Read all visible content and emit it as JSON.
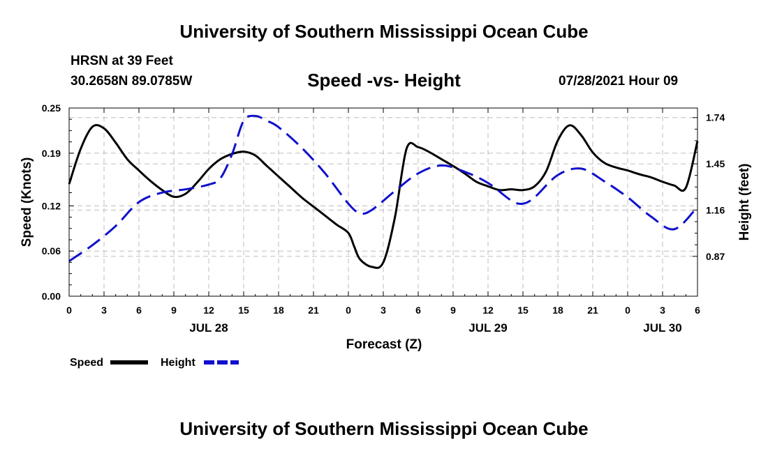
{
  "header": {
    "title": "University of Southern Mississippi Ocean Cube",
    "station": "HRSN at 39 Feet",
    "coords": "30.2658N  89.0785W",
    "subtitle": "Speed -vs- Height",
    "datetime": "07/28/2021 Hour 09"
  },
  "footer": {
    "title": "University of Southern Mississippi Ocean Cube"
  },
  "chart_data": {
    "type": "line",
    "title": "Speed -vs- Height",
    "xlabel": "Forecast (Z)",
    "ylabel": "Speed (Knots)",
    "y2label": "Height (feet)",
    "xlim": [
      0,
      54
    ],
    "ylim": [
      0,
      0.25
    ],
    "y2lim": [
      0.62,
      1.8
    ],
    "x_ticks": [
      0,
      3,
      6,
      9,
      12,
      15,
      18,
      21,
      24,
      27,
      30,
      33,
      36,
      39,
      42,
      45,
      48,
      51,
      54
    ],
    "x_tick_labels": [
      "0",
      "3",
      "6",
      "9",
      "12",
      "15",
      "18",
      "21",
      "0",
      "3",
      "6",
      "9",
      "12",
      "15",
      "18",
      "21",
      "0",
      "3",
      "6"
    ],
    "date_labels": [
      {
        "x": 12,
        "text": "JUL 28"
      },
      {
        "x": 36,
        "text": "JUL 29"
      },
      {
        "x": 51,
        "text": "JUL 30"
      }
    ],
    "y_ticks": [
      0.0,
      0.06,
      0.12,
      0.19,
      0.25
    ],
    "y_tick_labels": [
      "0.00",
      "0.06",
      "0.12",
      "0.19",
      "0.25"
    ],
    "y2_ticks": [
      0.87,
      1.16,
      1.45,
      1.74
    ],
    "y2_tick_labels": [
      "0.87",
      "1.16",
      "1.45",
      "1.74"
    ],
    "grid": true,
    "legend": [
      {
        "label": "Speed",
        "color": "#000000",
        "dash": "solid"
      },
      {
        "label": "Height",
        "color": "#1010cc",
        "dash": "dashed"
      }
    ],
    "series": [
      {
        "name": "Speed",
        "axis": "left",
        "color": "#000000",
        "x": [
          0,
          1,
          2,
          3,
          4,
          5,
          6,
          7,
          8,
          9,
          10,
          11,
          12,
          13,
          14,
          15,
          16,
          17,
          18,
          19,
          20,
          21,
          22,
          23,
          24,
          24.5,
          25,
          26,
          27,
          28,
          29,
          30,
          31,
          32,
          33,
          34,
          35,
          36,
          37,
          38,
          39,
          40,
          41,
          42,
          43,
          44,
          45,
          46,
          47,
          48,
          49,
          50,
          51,
          52,
          53,
          54
        ],
        "values": [
          0.149,
          0.196,
          0.225,
          0.223,
          0.204,
          0.182,
          0.167,
          0.153,
          0.141,
          0.132,
          0.136,
          0.151,
          0.169,
          0.182,
          0.189,
          0.192,
          0.187,
          0.173,
          0.159,
          0.145,
          0.131,
          0.119,
          0.107,
          0.095,
          0.084,
          0.066,
          0.049,
          0.039,
          0.045,
          0.105,
          0.196,
          0.198,
          0.191,
          0.182,
          0.173,
          0.163,
          0.152,
          0.146,
          0.141,
          0.142,
          0.141,
          0.146,
          0.166,
          0.207,
          0.227,
          0.214,
          0.191,
          0.177,
          0.171,
          0.167,
          0.162,
          0.158,
          0.152,
          0.147,
          0.144,
          0.206
        ],
        "points_note": "Estimated by reading the chart"
      },
      {
        "name": "Height",
        "axis": "right",
        "color": "#1010cc",
        "x": [
          0,
          2,
          4,
          6,
          8,
          10,
          12,
          13,
          14,
          15,
          16,
          17,
          18,
          20,
          22,
          24,
          25,
          26,
          28,
          30,
          32,
          34,
          36,
          38,
          39,
          40,
          42,
          44,
          46,
          48,
          50,
          52,
          54
        ],
        "values": [
          0.84,
          0.94,
          1.06,
          1.21,
          1.27,
          1.29,
          1.32,
          1.36,
          1.51,
          1.72,
          1.75,
          1.72,
          1.68,
          1.55,
          1.39,
          1.2,
          1.14,
          1.16,
          1.28,
          1.39,
          1.44,
          1.4,
          1.33,
          1.22,
          1.2,
          1.24,
          1.38,
          1.42,
          1.34,
          1.24,
          1.12,
          1.04,
          1.18
        ]
      }
    ]
  }
}
